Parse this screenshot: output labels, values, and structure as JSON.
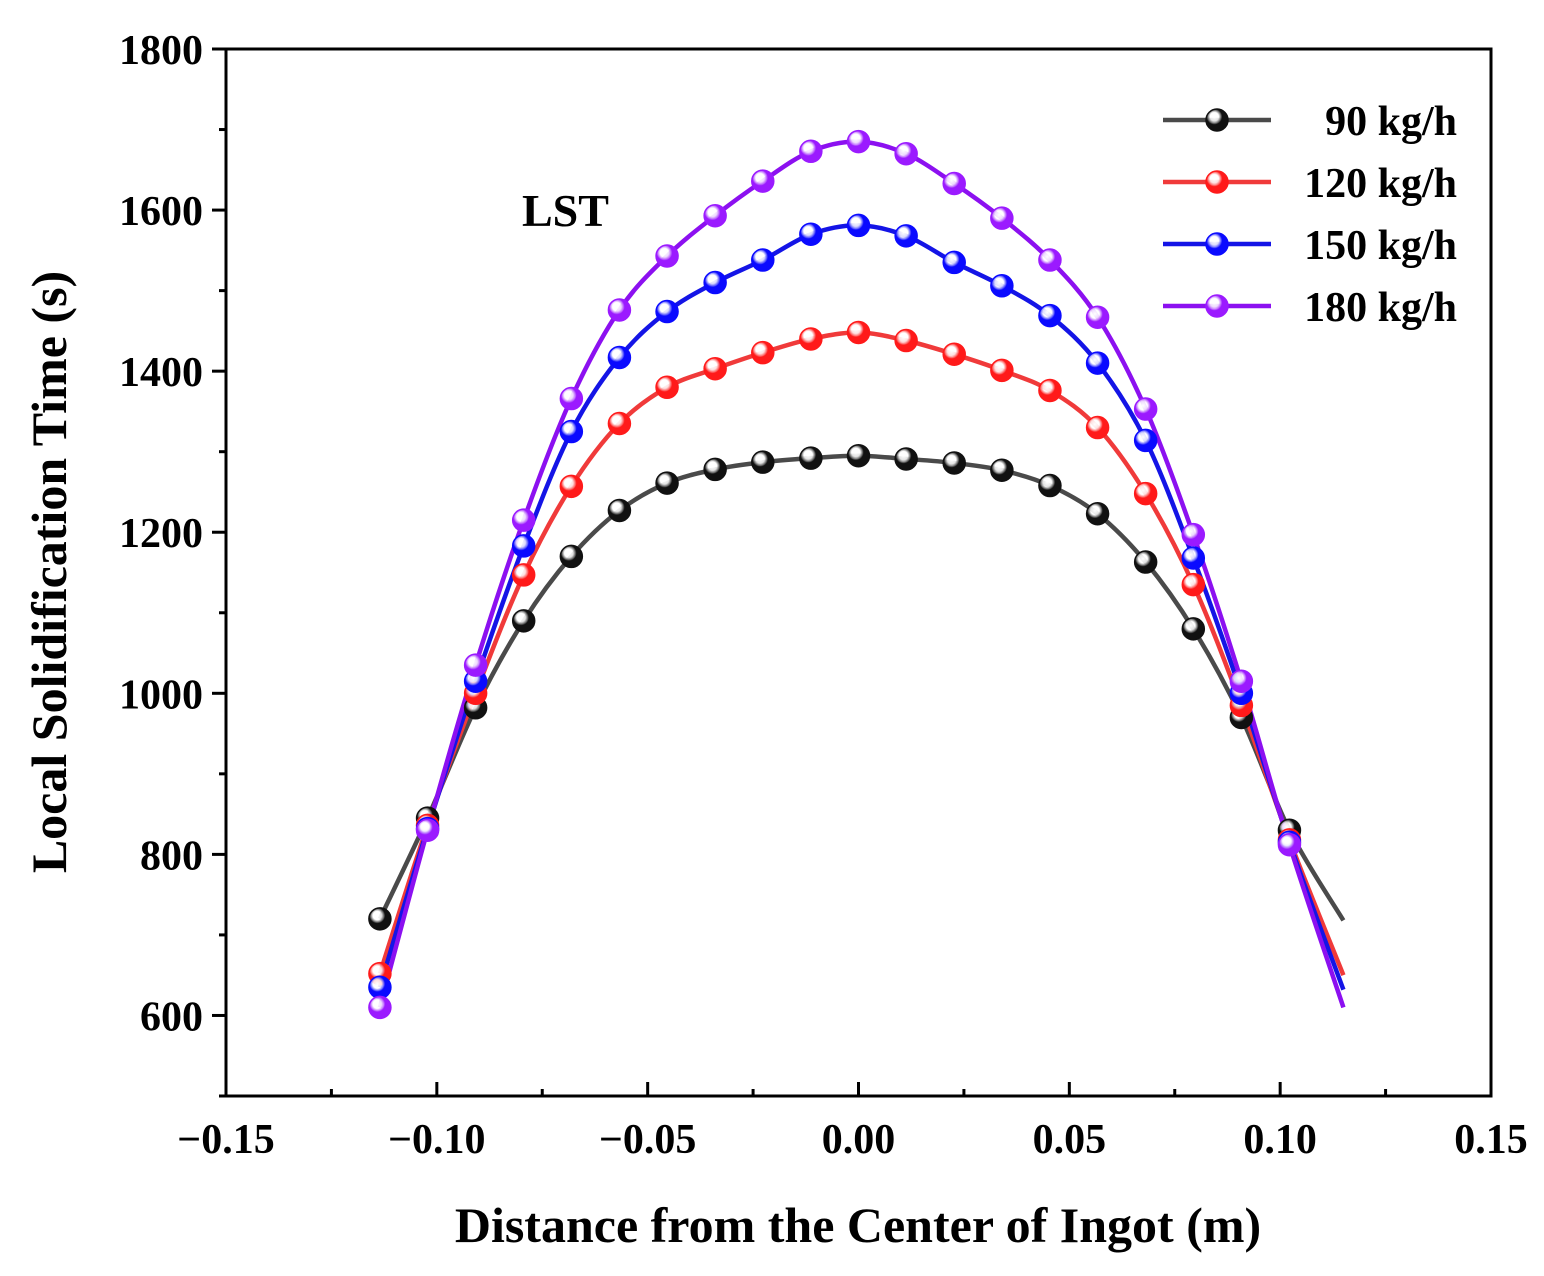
{
  "chart_data": {
    "type": "line",
    "title": "",
    "annotation": "LST",
    "xlabel": "Distance from the Center of Ingot (m)",
    "ylabel": "Local Solidification Time (s)",
    "xlim": [
      -0.15,
      0.15
    ],
    "ylim": [
      500,
      1800
    ],
    "x_ticks": [
      -0.15,
      -0.1,
      -0.05,
      0.0,
      0.05,
      0.1,
      0.15
    ],
    "x_tick_labels": [
      "−0.15",
      "−0.10",
      "−0.05",
      "0.00",
      "0.05",
      "0.10",
      "0.15"
    ],
    "y_ticks": [
      600,
      800,
      1000,
      1200,
      1400,
      1600,
      1800
    ],
    "y_tick_labels": [
      "600",
      "800",
      "1000",
      "1200",
      "1400",
      "1600",
      "1800"
    ],
    "grid": false,
    "legend_position": "top-right",
    "x": [
      -0.1135,
      -0.1022,
      -0.0908,
      -0.0794,
      -0.0681,
      -0.0567,
      -0.0454,
      -0.034,
      -0.0227,
      -0.0113,
      0.0,
      0.0113,
      0.0227,
      0.034,
      0.0454,
      0.0567,
      0.0681,
      0.0794,
      0.0908,
      0.1022,
      0.1135
    ],
    "line_x_end": 0.115,
    "series": [
      {
        "name": "90 kg/h",
        "color": "#4a4a4a",
        "marker_color": "#111111",
        "values": [
          720,
          845,
          982,
          1090,
          1170,
          1227,
          1261,
          1278,
          1287,
          1292,
          1295,
          1291,
          1286,
          1277,
          1258,
          1223,
          1163,
          1080,
          970,
          830,
          null
        ],
        "line_end_value": 718
      },
      {
        "name": "120 kg/h",
        "color": "#f03a3a",
        "marker_color": "#ff1a1a",
        "values": [
          652,
          836,
          1000,
          1147,
          1257,
          1335,
          1380,
          1403,
          1423,
          1440,
          1448,
          1438,
          1421,
          1401,
          1376,
          1330,
          1248,
          1135,
          985,
          818,
          null
        ],
        "line_end_value": 650
      },
      {
        "name": "150 kg/h",
        "color": "#1414e6",
        "marker_color": "#0a0aff",
        "values": [
          635,
          832,
          1015,
          1183,
          1325,
          1417,
          1474,
          1510,
          1538,
          1570,
          1581,
          1568,
          1535,
          1506,
          1469,
          1410,
          1314,
          1168,
          1000,
          815,
          null
        ],
        "line_end_value": 632
      },
      {
        "name": "180 kg/h",
        "color": "#8c10f0",
        "marker_color": "#9b1aff",
        "values": [
          610,
          830,
          1035,
          1215,
          1366,
          1476,
          1543,
          1593,
          1636,
          1673,
          1685,
          1670,
          1633,
          1590,
          1538,
          1467,
          1353,
          1197,
          1015,
          812,
          null
        ],
        "line_end_value": 610
      }
    ]
  }
}
